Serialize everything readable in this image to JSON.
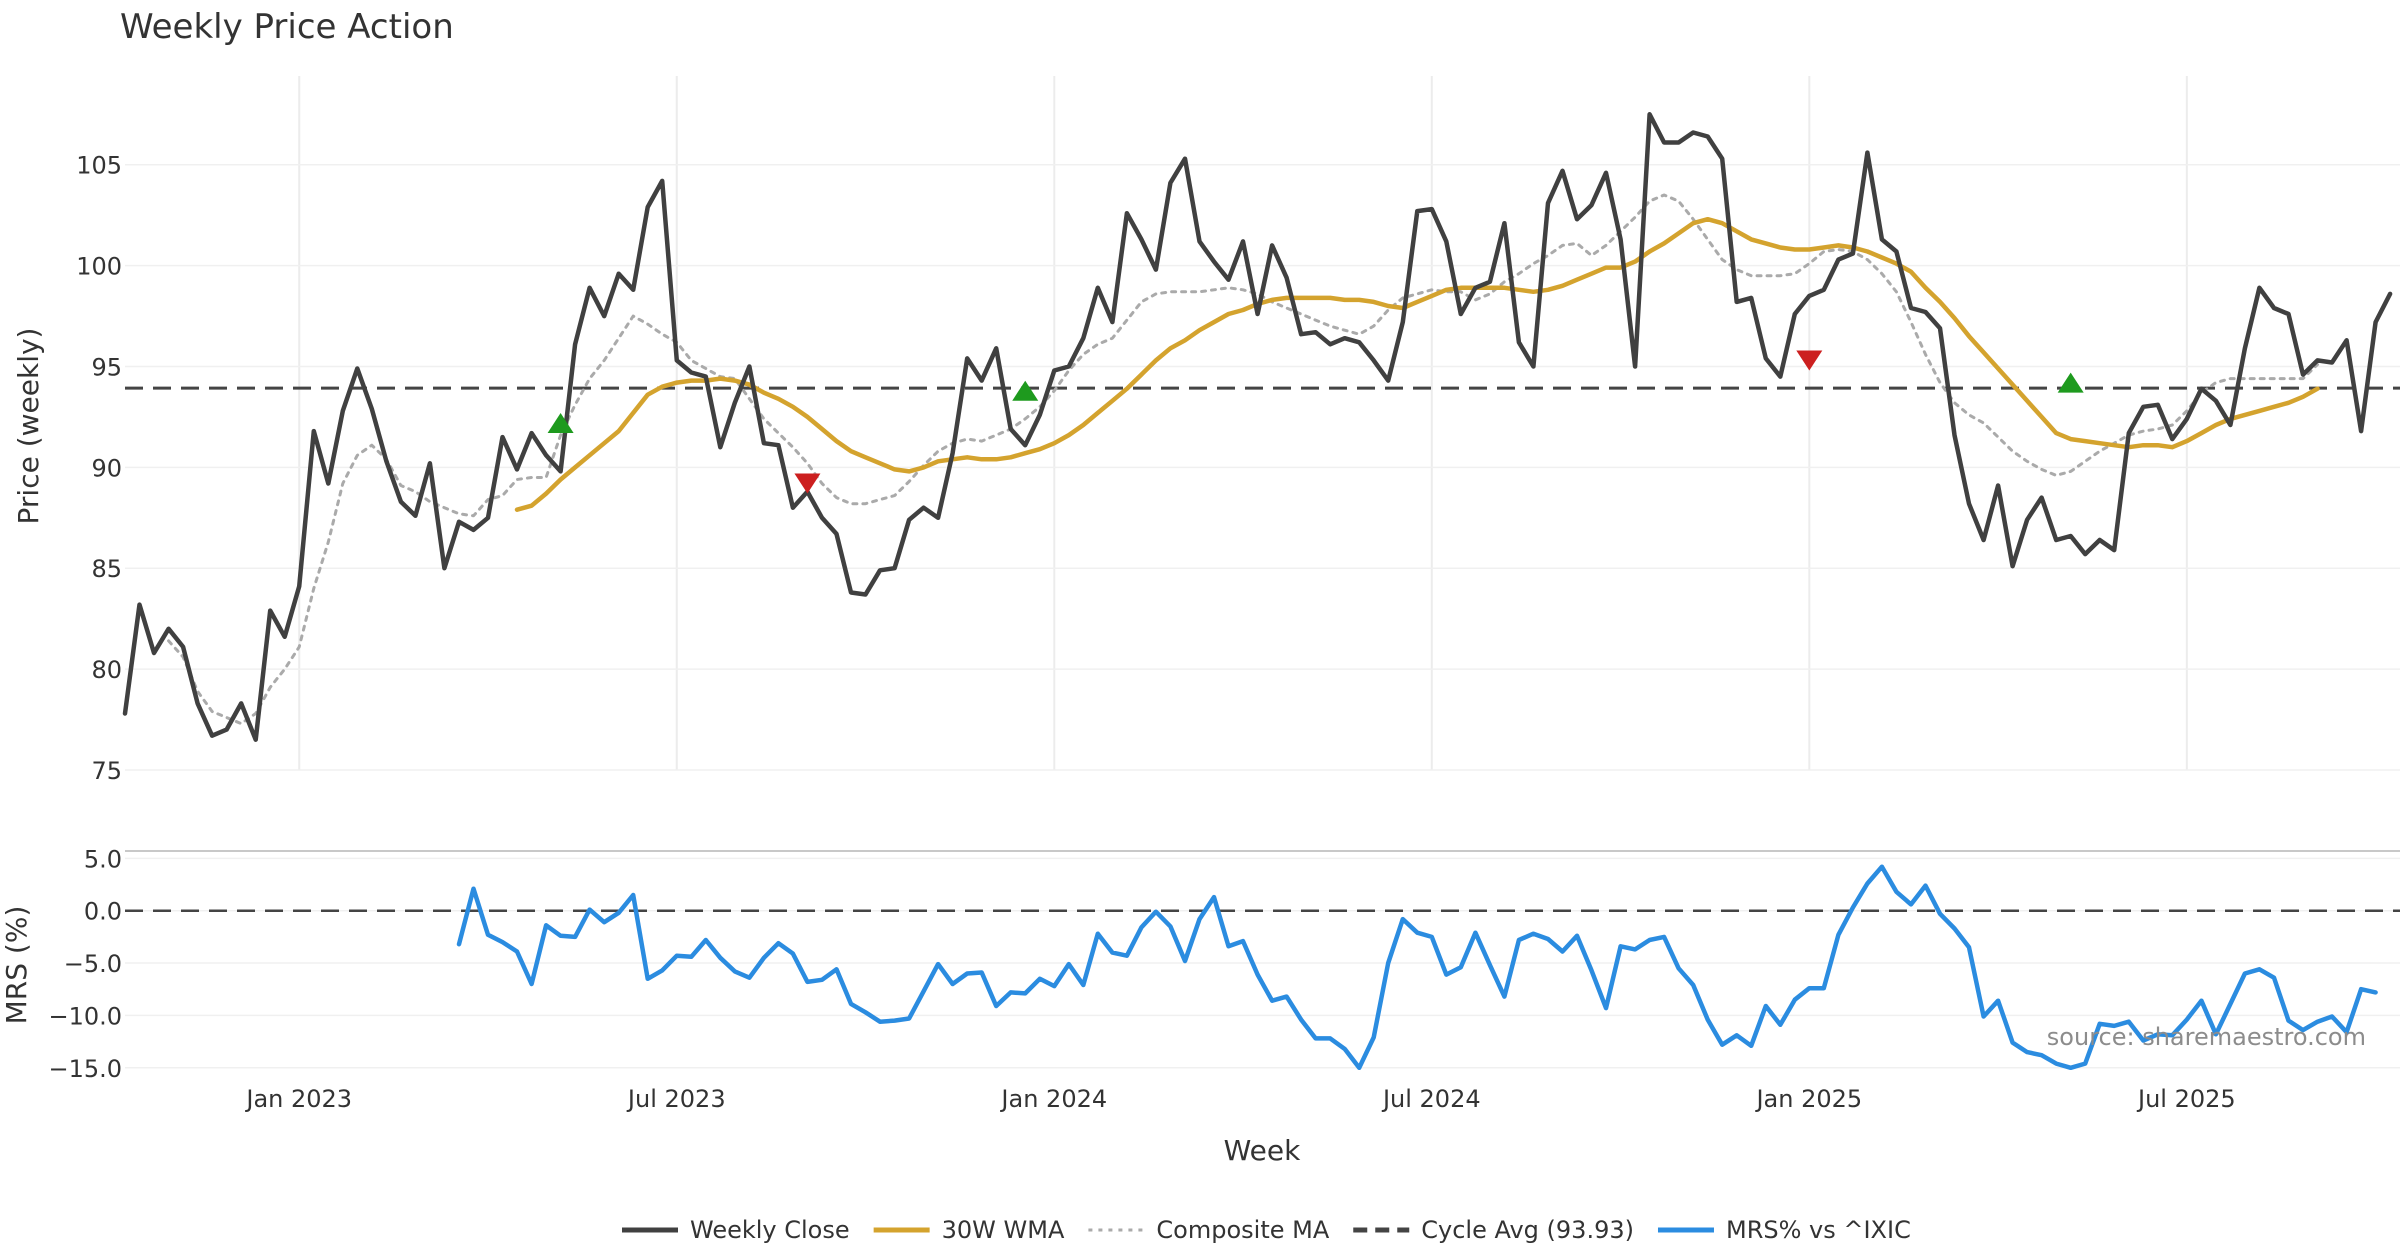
{
  "chart_data": {
    "type": "line",
    "title": "Weekly Price Action",
    "source_note": "source: sharemaestro.com",
    "x_axis": {
      "label": "Week",
      "start_week_index": 0,
      "start_date": "2022-10-10",
      "ticks": [
        {
          "label": "Jan 2023",
          "week": 12
        },
        {
          "label": "Jul 2023",
          "week": 38
        },
        {
          "label": "Jan 2024",
          "week": 64
        },
        {
          "label": "Jul 2024",
          "week": 90
        },
        {
          "label": "Jan 2025",
          "week": 116
        },
        {
          "label": "Jul 2025",
          "week": 142
        }
      ],
      "range": [
        0,
        155
      ]
    },
    "top_panel": {
      "ylabel": "Price (weekly)",
      "ylim": [
        75,
        109.2
      ],
      "yticks": [
        "75",
        "80",
        "85",
        "90",
        "95",
        "100",
        "105"
      ],
      "series": [
        {
          "name": "Weekly Close",
          "color": "#404040",
          "style": "solid",
          "start_week": 0,
          "values": [
            77.8,
            83.2,
            80.8,
            82,
            81.1,
            78.3,
            76.7,
            77,
            78.3,
            76.5,
            82.9,
            81.6,
            84.1,
            91.8,
            89.2,
            92.8,
            94.9,
            92.9,
            90.3,
            88.3,
            87.6,
            90.2,
            85,
            87.3,
            86.9,
            87.5,
            91.5,
            89.9,
            91.7,
            90.6,
            89.8,
            96.1,
            98.9,
            97.5,
            99.6,
            98.8,
            102.9,
            104.2,
            95.3,
            94.7,
            94.5,
            91,
            93.2,
            95,
            91.2,
            91.1,
            88,
            88.8,
            87.5,
            86.7,
            83.8,
            83.7,
            84.9,
            85,
            87.4,
            88,
            87.5,
            90.7,
            95.4,
            94.3,
            95.9,
            91.9,
            91.1,
            92.6,
            94.8,
            95,
            96.4,
            98.9,
            97.2,
            102.6,
            101.3,
            99.8,
            104.1,
            105.3,
            101.2,
            100.2,
            99.3,
            101.2,
            97.6,
            101,
            99.4,
            96.6,
            96.7,
            96.1,
            96.4,
            96.2,
            95.3,
            94.3,
            97.2,
            102.7,
            102.8,
            101.2,
            97.6,
            98.9,
            99.2,
            102.1,
            96.2,
            95,
            103.1,
            104.7,
            102.3,
            103,
            104.6,
            101.3,
            95,
            107.5,
            106.1,
            106.1,
            106.6,
            106.4,
            105.3,
            98.2,
            98.4,
            95.4,
            94.5,
            97.6,
            98.5,
            98.8,
            100.3,
            100.6,
            105.6,
            101.3,
            100.7,
            97.9,
            97.7,
            96.9,
            91.6,
            88.2,
            86.4,
            89.1,
            85.1,
            87.4,
            88.5,
            86.4,
            86.6,
            85.7,
            86.4,
            85.9,
            91.7,
            93,
            93.1,
            91.4,
            92.4,
            93.9,
            93.3,
            92.1,
            95.9,
            98.9,
            97.9,
            97.6,
            94.6,
            95.3,
            95.2,
            96.3,
            91.8,
            97.2,
            98.6
          ]
        },
        {
          "name": "Composite MA",
          "color": "#aaaaaa",
          "style": "dotted",
          "start_week": 3,
          "values": [
            81.4,
            80.6,
            78.9,
            77.9,
            77.6,
            77.3,
            77.8,
            79.1,
            80,
            81.1,
            84,
            86.3,
            89.2,
            90.6,
            91.1,
            90.4,
            89.1,
            88.8,
            88.3,
            88,
            87.7,
            87.6,
            88.4,
            88.6,
            89.4,
            89.5,
            89.5,
            91.6,
            93.1,
            94.4,
            95.3,
            96.4,
            97.5,
            97.1,
            96.6,
            96.2,
            95.3,
            94.9,
            94.5,
            94.4,
            93.4,
            92.4,
            91.7,
            91,
            90.2,
            89.2,
            88.5,
            88.2,
            88.2,
            88.4,
            88.6,
            89.3,
            90.1,
            90.8,
            91.2,
            91.4,
            91.3,
            91.6,
            91.9,
            92.4,
            93,
            93.8,
            94.8,
            95.6,
            96.1,
            96.4,
            97.3,
            98.2,
            98.6,
            98.7,
            98.7,
            98.7,
            98.8,
            98.9,
            98.8,
            98.6,
            98.2,
            97.9,
            97.6,
            97.3,
            97,
            96.8,
            96.6,
            97,
            97.8,
            98.4,
            98.6,
            98.8,
            98.7,
            98.7,
            98.3,
            98.6,
            99.2,
            99.6,
            100.1,
            100.5,
            101,
            101.1,
            100.5,
            101,
            101.7,
            102.4,
            103.2,
            103.5,
            103.2,
            102.3,
            101.3,
            100.3,
            99.8,
            99.5,
            99.5,
            99.5,
            99.6,
            100.1,
            100.7,
            100.8,
            100.7,
            100.3,
            99.6,
            98.7,
            97.2,
            95.6,
            94.2,
            93.2,
            92.6,
            92.2,
            91.5,
            90.8,
            90.3,
            89.9,
            89.6,
            89.8,
            90.3,
            90.8,
            91.2,
            91.6,
            91.8,
            91.9,
            92.1,
            92.8,
            93.7,
            94.2,
            94.4,
            94.4,
            94.4,
            94.4,
            94.4,
            94.4,
            95.1
          ]
        },
        {
          "name": "30W WMA",
          "color": "#d4a32e",
          "style": "solid",
          "start_week": 27,
          "values": [
            87.9,
            88.1,
            88.7,
            89.4,
            90,
            90.6,
            91.2,
            91.8,
            92.7,
            93.6,
            94,
            94.2,
            94.3,
            94.3,
            94.4,
            94.3,
            94.1,
            93.7,
            93.4,
            93,
            92.5,
            91.9,
            91.3,
            90.8,
            90.5,
            90.2,
            89.9,
            89.8,
            90,
            90.3,
            90.4,
            90.5,
            90.4,
            90.4,
            90.5,
            90.7,
            90.9,
            91.2,
            91.6,
            92.1,
            92.7,
            93.3,
            93.9,
            94.6,
            95.3,
            95.9,
            96.3,
            96.8,
            97.2,
            97.6,
            97.8,
            98.1,
            98.3,
            98.4,
            98.4,
            98.4,
            98.4,
            98.3,
            98.3,
            98.2,
            98,
            97.9,
            98.2,
            98.5,
            98.8,
            98.9,
            98.9,
            98.9,
            98.9,
            98.8,
            98.7,
            98.8,
            99,
            99.3,
            99.6,
            99.9,
            99.9,
            100.2,
            100.7,
            101.1,
            101.6,
            102.1,
            102.3,
            102.1,
            101.7,
            101.3,
            101.1,
            100.9,
            100.8,
            100.8,
            100.9,
            101,
            100.9,
            100.7,
            100.4,
            100.1,
            99.7,
            98.9,
            98.2,
            97.4,
            96.5,
            95.7,
            94.9,
            94.1,
            93.3,
            92.5,
            91.7,
            91.4,
            91.3,
            91.2,
            91.1,
            91,
            91.1,
            91.1,
            91,
            91.3,
            91.7,
            92.1,
            92.4,
            92.6,
            92.8,
            93,
            93.2,
            93.5,
            93.9
          ]
        }
      ],
      "reference_line": {
        "name": "Cycle Avg (93.93)",
        "value": 93.93,
        "color": "#444444",
        "style": "dashed"
      },
      "markers": [
        {
          "type": "buy",
          "shape": "triangle-up",
          "color": "#1e9a1e",
          "week": 30,
          "value": 92.2
        },
        {
          "type": "sell",
          "shape": "triangle-down",
          "color": "#cc1f1f",
          "week": 47,
          "value": 89.2
        },
        {
          "type": "buy",
          "shape": "triangle-up",
          "color": "#1e9a1e",
          "week": 62,
          "value": 93.8
        },
        {
          "type": "sell",
          "shape": "triangle-down",
          "color": "#cc1f1f",
          "week": 116,
          "value": 95.3
        },
        {
          "type": "buy",
          "shape": "triangle-up",
          "color": "#1e9a1e",
          "week": 134,
          "value": 94.2
        }
      ]
    },
    "bottom_panel": {
      "ylabel": "MRS (%)",
      "ylim": [
        -15.5,
        5.7
      ],
      "yticks": [
        "−15.0",
        "−10.0",
        "−5.0",
        "0.0",
        "5.0"
      ],
      "series": [
        {
          "name": "MRS% vs ^IXIC",
          "color": "#2b8ce0",
          "style": "solid",
          "start_week": 23,
          "values": [
            -3.2,
            2.1,
            -2.3,
            -3,
            -3.9,
            -7,
            -1.4,
            -2.4,
            -2.5,
            0.1,
            -1.1,
            -0.2,
            1.5,
            -6.5,
            -5.7,
            -4.3,
            -4.4,
            -2.8,
            -4.5,
            -5.8,
            -6.4,
            -4.5,
            -3.1,
            -4.1,
            -6.8,
            -6.6,
            -5.6,
            -8.9,
            -9.7,
            -10.6,
            -10.5,
            -10.3,
            -7.7,
            -5.1,
            -7,
            -6,
            -5.9,
            -9.1,
            -7.8,
            -7.9,
            -6.5,
            -7.2,
            -5.1,
            -7.1,
            -2.2,
            -4,
            -4.3,
            -1.6,
            -0.1,
            -1.5,
            -4.8,
            -0.8,
            1.3,
            -3.4,
            -2.9,
            -6.1,
            -8.6,
            -8.2,
            -10.4,
            -12.2,
            -12.2,
            -13.2,
            -15,
            -12.1,
            -5,
            -0.8,
            -2.1,
            -2.5,
            -6.1,
            -5.4,
            -2.1,
            -5.2,
            -8.2,
            -2.8,
            -2.2,
            -2.7,
            -3.9,
            -2.4,
            -5.7,
            -9.3,
            -3.4,
            -3.7,
            -2.8,
            -2.5,
            -5.5,
            -7.1,
            -10.4,
            -12.8,
            -11.9,
            -12.9,
            -9.1,
            -10.9,
            -8.5,
            -7.4,
            -7.4,
            -2.3,
            0.3,
            2.6,
            4.2,
            1.8,
            0.6,
            2.4,
            -0.3,
            -1.7,
            -3.5,
            -10.1,
            -8.6,
            -12.6,
            -13.5,
            -13.8,
            -14.6,
            -15,
            -14.6,
            -10.8,
            -11,
            -10.6,
            -12.4,
            -11.8,
            -11.9,
            -10.4,
            -8.6,
            -11.8,
            -8.9,
            -6,
            -5.6,
            -6.4,
            -10.5,
            -11.4,
            -10.6,
            -10.1,
            -11.6,
            -7.5,
            -7.8
          ]
        }
      ],
      "reference_line": {
        "value": 0,
        "color": "#444444",
        "style": "dashed"
      }
    },
    "legend": {
      "placement": "bottom-center",
      "entries": [
        {
          "label": "Weekly Close",
          "color": "#404040",
          "style": "solid"
        },
        {
          "label": "30W WMA",
          "color": "#d4a32e",
          "style": "solid"
        },
        {
          "label": "Composite MA",
          "color": "#aaaaaa",
          "style": "dotted"
        },
        {
          "label": "Cycle Avg (93.93)",
          "color": "#444444",
          "style": "dashed"
        },
        {
          "label": "MRS% vs ^IXIC",
          "color": "#2b8ce0",
          "style": "solid"
        }
      ]
    }
  }
}
